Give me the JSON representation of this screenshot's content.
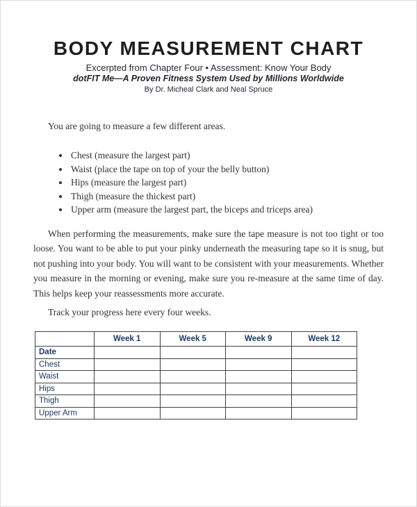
{
  "page": {
    "title": "BODY MEASUREMENT CHART",
    "subtitle": "Excerpted from Chapter Four • Assessment: Know Your Body",
    "tagline": "dotFIT Me—A Proven Fitness System Used by Millions Worldwide",
    "byline": "By Dr. Micheal Clark and Neal Spruce"
  },
  "body": {
    "intro": "You are going to measure a few different areas.",
    "bullets": [
      "Chest (measure the largest part)",
      "Waist (place the tape on top of your the belly button)",
      "Hips (measure the largest part)",
      "Thigh (measure the thickest part)",
      "Upper arm (measure the largest part, the biceps and triceps area)"
    ],
    "paragraph": "When performing the measurements, make sure the tape measure is not too tight or too loose. You want to be able to put your pinky underneath the measuring tape so it is snug, but not pushing into your body. You will want to be consistent with your measurements. Whether you measure in the morning or evening, make sure you re-measure at the same time of day. This helps keep your reassessments more accurate.",
    "track_note": "Track your progress here every four weeks."
  },
  "table": {
    "columns": [
      "",
      "Week 1",
      "Week 5",
      "Week 9",
      "Week 12"
    ],
    "row_labels": [
      "Date",
      "Chest",
      "Waist",
      "Hips",
      "Thigh",
      "Upper Arm"
    ],
    "cells": [
      [
        "",
        "",
        "",
        ""
      ],
      [
        "",
        "",
        "",
        ""
      ],
      [
        "",
        "",
        "",
        ""
      ],
      [
        "",
        "",
        "",
        ""
      ],
      [
        "",
        "",
        "",
        ""
      ],
      [
        "",
        "",
        "",
        ""
      ]
    ]
  },
  "colors": {
    "table_text": "#1c3a66",
    "table_border": "#3f3f3f",
    "body_text": "#332f38",
    "title_text": "#1f1d1e",
    "page_background": "#ffffff"
  }
}
